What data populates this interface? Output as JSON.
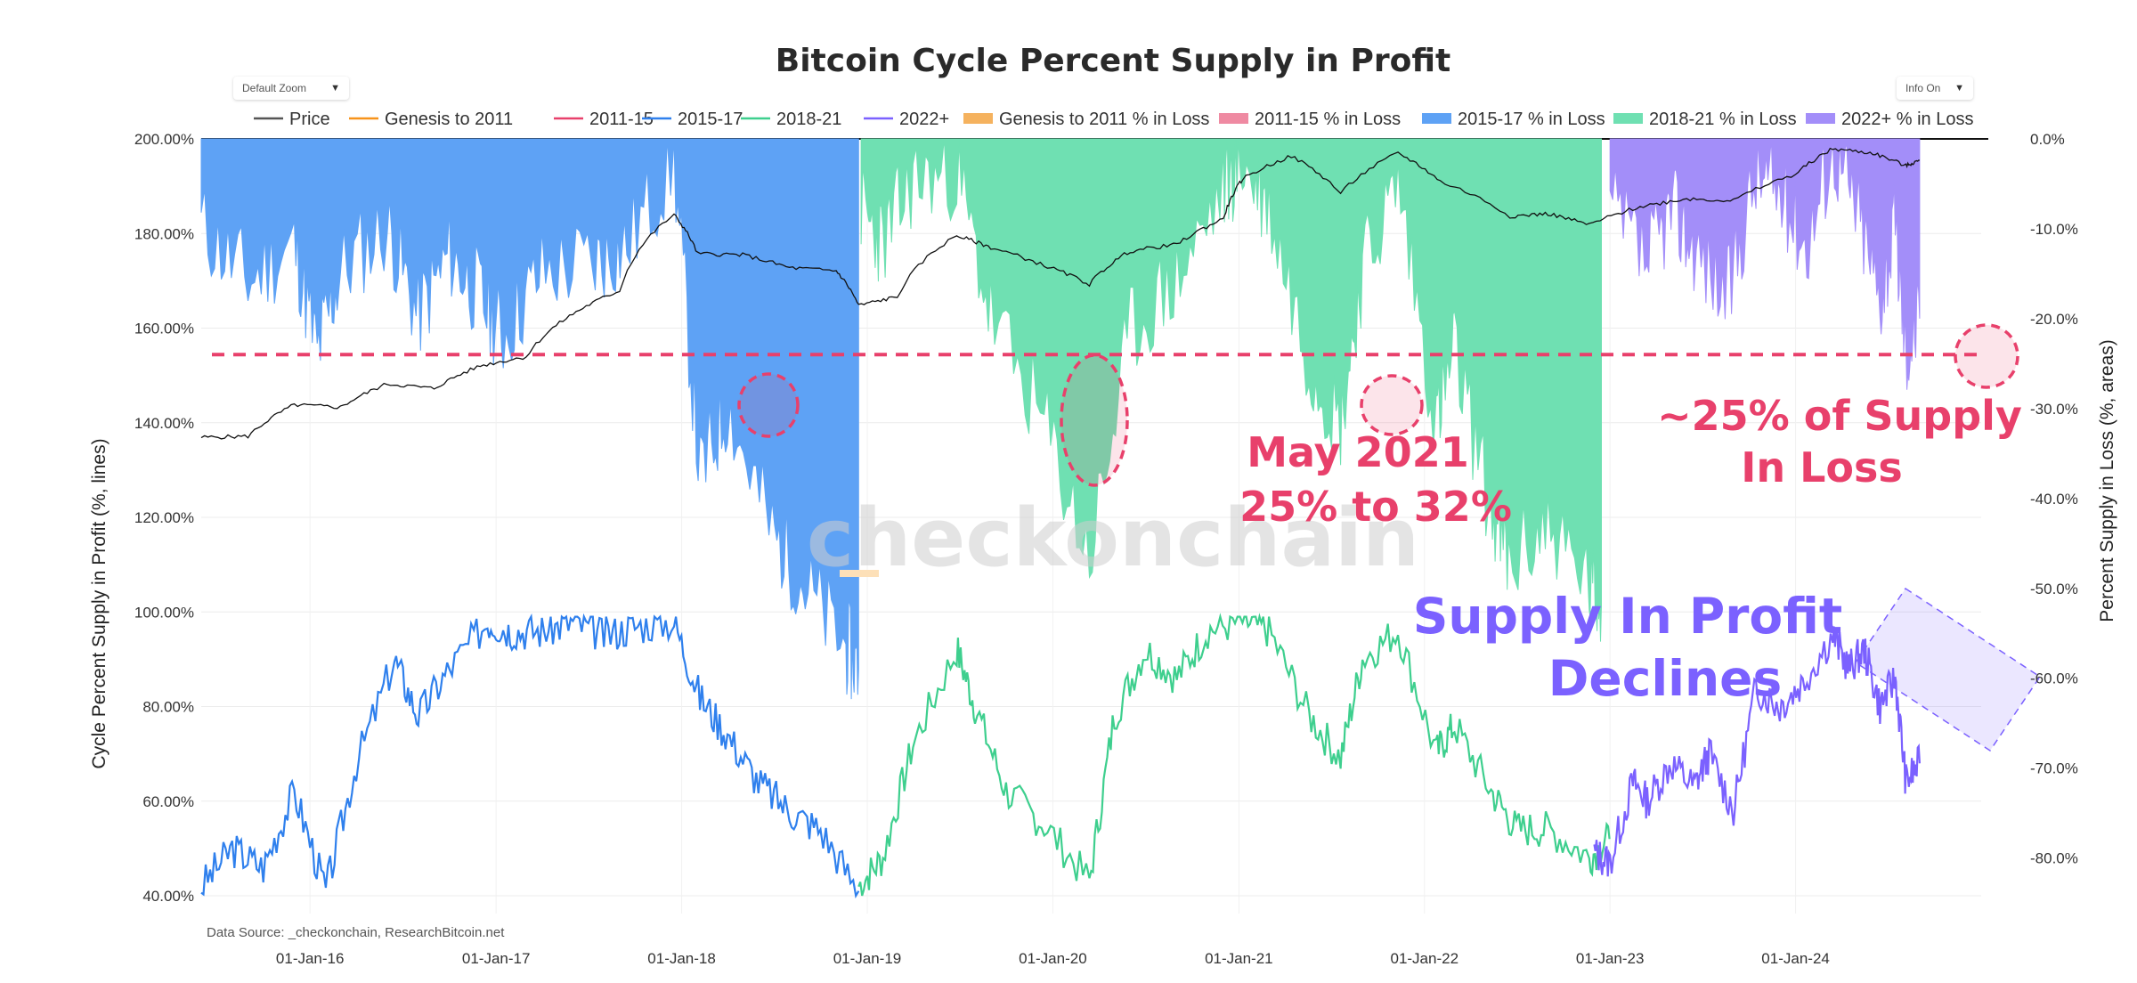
{
  "controls": {
    "zoom_label": "Default Zoom",
    "info_label": "Info On"
  },
  "source_text": "Data Source: _checkonchain, ResearchBitcoin.net",
  "watermark": "checkonchain",
  "colors": {
    "price": "#111111",
    "genesis": "#f7931a",
    "c2011_15": "#e8406b",
    "c2015_17": "#2f80ed",
    "c2018_21": "#3ecf8e",
    "c2022": "#7b61ff",
    "loss_genesis": "#f5b25e",
    "loss_2011_15": "#ef8aa2",
    "loss_2015_17": "#5ea2f5",
    "loss_2018_21": "#6fe0b2",
    "loss_2022": "#a38ef9",
    "annotation": "#e8406b",
    "annotation_purple": "#7b61ff"
  },
  "legend": [
    {
      "label": "Price",
      "kind": "line",
      "color": "#555555"
    },
    {
      "label": "Genesis to 2011",
      "kind": "line",
      "color": "#f7931a"
    },
    {
      "label": "2011-15",
      "kind": "line",
      "color": "#e8406b"
    },
    {
      "label": "2015-17",
      "kind": "line",
      "color": "#2f80ed"
    },
    {
      "label": "2018-21",
      "kind": "line",
      "color": "#3ecf8e"
    },
    {
      "label": "2022+",
      "kind": "line",
      "color": "#7b61ff"
    },
    {
      "label": "Genesis to 2011 % in Loss",
      "kind": "area",
      "color": "#f5b25e"
    },
    {
      "label": "2011-15  % in Loss",
      "kind": "area",
      "color": "#ef8aa2"
    },
    {
      "label": "2015-17  % in Loss",
      "kind": "area",
      "color": "#5ea2f5"
    },
    {
      "label": "2018-21  % in Loss",
      "kind": "area",
      "color": "#6fe0b2"
    },
    {
      "label": "2022+  % in Loss",
      "kind": "area",
      "color": "#a38ef9"
    }
  ],
  "annotations": {
    "may_2021_line1": "May 2021",
    "may_2021_line2": "25% to 32%",
    "supply_loss_line1": "~25% of Supply",
    "supply_loss_line2": "In Loss",
    "profit_line1": "Supply In Profit",
    "profit_line2": "Declines"
  },
  "chart_data": {
    "type": "line",
    "title": "Bitcoin Cycle Percent Supply in Profit",
    "ylabel": "Cycle Percent Supply in Profit (%, lines)",
    "y2label": "Percent Supply in Loss (%, areas)",
    "ylim": [
      40,
      200
    ],
    "y2lim": [
      -84.2,
      0
    ],
    "xlim": [
      "2015-06-01",
      "2024-12-31"
    ],
    "xtick_labels": [
      "01-Jan-16",
      "01-Jan-17",
      "01-Jan-18",
      "01-Jan-19",
      "01-Jan-20",
      "01-Jan-21",
      "01-Jan-22",
      "01-Jan-23",
      "01-Jan-24"
    ],
    "ytick_labels": [
      "200.00%",
      "180.00%",
      "160.00%",
      "140.00%",
      "120.00%",
      "100.00%",
      "80.00%",
      "60.00%",
      "40.00%"
    ],
    "y2tick_labels": [
      "0.0%",
      "-10.0%",
      "-20.0%",
      "-30.0%",
      "-40.0%",
      "-50.0%",
      "-60.0%",
      "-70.0%",
      "-80.0%"
    ],
    "grid": true,
    "legend_position": "top",
    "reference_line": {
      "axis": "y2",
      "value": -24.0,
      "style": "dashed"
    },
    "series": [
      {
        "name": "Price",
        "axis": "y_log_overlay",
        "x": [
          "2015-06-01",
          "2015-09-01",
          "2015-12-01",
          "2016-03-01",
          "2016-06-01",
          "2016-09-01",
          "2016-12-01",
          "2017-03-01",
          "2017-06-01",
          "2017-09-01",
          "2017-12-17",
          "2018-02-01",
          "2018-05-01",
          "2018-08-01",
          "2018-11-01",
          "2018-12-15",
          "2019-03-01",
          "2019-06-26",
          "2019-09-01",
          "2019-12-15",
          "2020-03-13",
          "2020-06-01",
          "2020-09-01",
          "2020-12-01",
          "2021-01-08",
          "2021-04-14",
          "2021-07-20",
          "2021-11-10",
          "2022-02-01",
          "2022-06-18",
          "2022-09-01",
          "2022-11-21",
          "2023-03-01",
          "2023-06-01",
          "2023-09-01",
          "2024-01-01",
          "2024-03-14",
          "2024-06-01",
          "2024-08-05",
          "2024-09-01"
        ],
        "values": [
          230,
          235,
          440,
          420,
          670,
          610,
          960,
          1150,
          2700,
          4300,
          19500,
          9000,
          8800,
          6800,
          6400,
          3200,
          3800,
          12900,
          10200,
          7100,
          4900,
          9500,
          10800,
          18000,
          40000,
          63000,
          30000,
          67000,
          38000,
          19000,
          20000,
          16000,
          23000,
          27000,
          26000,
          44000,
          73000,
          67000,
          52000,
          58000
        ]
      },
      {
        "name": "2015-17",
        "axis": "y",
        "x": [
          "2015-06-01",
          "2015-08-01",
          "2015-10-01",
          "2015-12-01",
          "2016-02-01",
          "2016-04-01",
          "2016-06-15",
          "2016-08-01",
          "2016-10-01",
          "2016-12-15",
          "2017-02-01",
          "2017-04-01",
          "2017-06-01",
          "2017-08-01",
          "2017-10-01",
          "2017-12-17",
          "2018-02-06",
          "2018-04-01",
          "2018-06-01",
          "2018-08-01",
          "2018-10-01",
          "2018-12-15"
        ],
        "values": [
          42,
          50,
          46,
          62,
          41,
          68,
          90,
          78,
          88,
          98,
          96,
          96,
          98,
          95,
          97,
          98,
          82,
          74,
          64,
          58,
          54,
          41
        ]
      },
      {
        "name": "2018-21",
        "axis": "y",
        "x": [
          "2018-12-15",
          "2019-02-01",
          "2019-04-01",
          "2019-06-26",
          "2019-08-01",
          "2019-10-01",
          "2019-12-15",
          "2020-03-13",
          "2020-05-01",
          "2020-07-01",
          "2020-09-01",
          "2020-11-01",
          "2021-01-08",
          "2021-03-01",
          "2021-05-19",
          "2021-07-20",
          "2021-09-01",
          "2021-11-10",
          "2022-01-24",
          "2022-03-01",
          "2022-05-12",
          "2022-07-01",
          "2022-09-01",
          "2022-11-21",
          "2022-12-31"
        ],
        "values": [
          42,
          48,
          72,
          92,
          80,
          62,
          55,
          43,
          78,
          92,
          86,
          96,
          98,
          96,
          78,
          69,
          90,
          96,
          70,
          76,
          62,
          54,
          54,
          48,
          52
        ]
      },
      {
        "name": "2022+",
        "axis": "y",
        "x": [
          "2022-12-01",
          "2023-01-01",
          "2023-02-15",
          "2023-03-15",
          "2023-05-01",
          "2023-06-15",
          "2023-07-15",
          "2023-09-01",
          "2023-10-15",
          "2023-12-01",
          "2024-01-15",
          "2024-03-14",
          "2024-04-15",
          "2024-05-15",
          "2024-06-15",
          "2024-07-15",
          "2024-08-05",
          "2024-09-01"
        ],
        "values": [
          49,
          47,
          64,
          60,
          68,
          63,
          70,
          58,
          84,
          80,
          85,
          95,
          88,
          92,
          80,
          86,
          64,
          68
        ]
      },
      {
        "name": "2015-17 % in Loss",
        "axis": "y2",
        "x": [
          "2015-06-01",
          "2015-09-01",
          "2015-12-01",
          "2016-01-15",
          "2016-03-01",
          "2016-06-01",
          "2016-08-01",
          "2016-10-01",
          "2016-12-01",
          "2017-01-15",
          "2017-04-01",
          "2017-07-15",
          "2017-09-15",
          "2017-12-17",
          "2018-02-06",
          "2018-04-01",
          "2018-06-28",
          "2018-09-01",
          "2018-11-20",
          "2018-12-15"
        ],
        "values": [
          -10,
          -16,
          -12,
          -24,
          -15,
          -10,
          -20,
          -13,
          -18,
          -22,
          -15,
          -14,
          -12,
          -3,
          -38,
          -30,
          -44,
          -50,
          -57,
          -59
        ]
      },
      {
        "name": "2018-21 % in Loss",
        "axis": "y2",
        "x": [
          "2018-12-20",
          "2019-02-01",
          "2019-04-01",
          "2019-06-26",
          "2019-09-01",
          "2019-12-15",
          "2020-03-13",
          "2020-06-01",
          "2020-09-01",
          "2020-12-01",
          "2021-01-08",
          "2021-03-01",
          "2021-05-19",
          "2021-07-20",
          "2021-09-01",
          "2021-11-10",
          "2022-01-24",
          "2022-03-01",
          "2022-05-12",
          "2022-06-18",
          "2022-09-01",
          "2022-11-21",
          "2022-12-15"
        ],
        "values": [
          -8,
          -12,
          -5,
          -4,
          -20,
          -32,
          -47,
          -22,
          -16,
          -6,
          -3,
          -8,
          -25,
          -32,
          -15,
          -5,
          -32,
          -24,
          -42,
          -48,
          -43,
          -50,
          -52
        ]
      },
      {
        "name": "2022+ % in Loss",
        "axis": "y2",
        "x": [
          "2023-01-01",
          "2023-03-15",
          "2023-05-01",
          "2023-06-15",
          "2023-08-20",
          "2023-10-15",
          "2023-12-01",
          "2024-01-23",
          "2024-03-14",
          "2024-05-01",
          "2024-06-15",
          "2024-07-15",
          "2024-08-05",
          "2024-09-01"
        ],
        "values": [
          -8,
          -14,
          -8,
          -12,
          -18,
          -4,
          -6,
          -12,
          -1,
          -8,
          -18,
          -10,
          -24,
          -20
        ]
      }
    ]
  }
}
